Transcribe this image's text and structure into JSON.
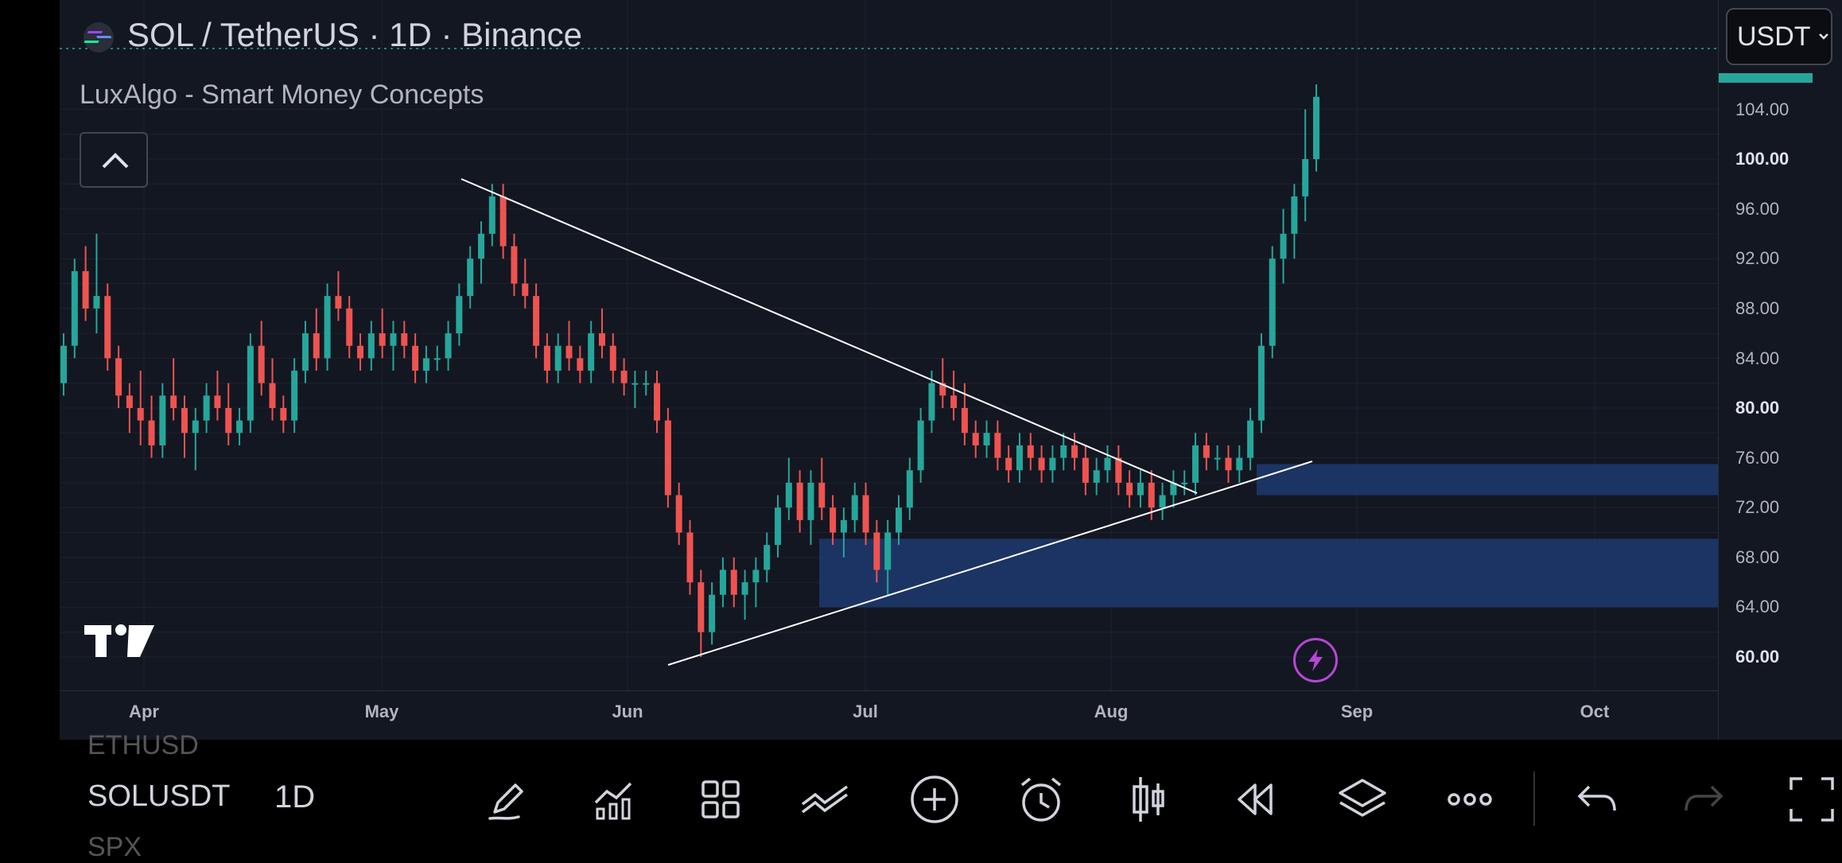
{
  "header": {
    "symbol_title": "SOL / TetherUS · 1D · Binance",
    "indicator_label": "LuxAlgo - Smart Money Concepts",
    "currency_selector": "USDT",
    "currency_chevron_icon": "chevron-down-icon"
  },
  "price_axis": {
    "ticks": [
      "104.00",
      "100.00",
      "96.00",
      "92.00",
      "88.00",
      "84.00",
      "80.00",
      "76.00",
      "72.00",
      "68.00",
      "64.00",
      "60.00"
    ],
    "bold_ticks": [
      "100.00",
      "80.00",
      "60.00"
    ]
  },
  "time_axis": {
    "labels": [
      "Apr",
      "May",
      "Jun",
      "Jul",
      "Aug",
      "Sep",
      "Oct"
    ]
  },
  "colors": {
    "background": "#131722",
    "up_candle": "#26a69a",
    "down_candle": "#ef5350",
    "order_block": "#1e3a6e",
    "trendline": "#ffffff",
    "accent_purple": "#b846d6"
  },
  "chart_data": {
    "type": "candlestick",
    "title": "SOL / TetherUS · 1D · Binance",
    "ylim": [
      58,
      108
    ],
    "x_labels": [
      "Apr",
      "May",
      "Jun",
      "Jul",
      "Aug",
      "Sep",
      "Oct"
    ],
    "candles": [
      [
        82,
        86,
        81,
        85
      ],
      [
        85,
        92,
        84,
        91
      ],
      [
        91,
        93,
        87,
        88
      ],
      [
        88,
        94,
        86,
        89
      ],
      [
        89,
        90,
        83,
        84
      ],
      [
        84,
        85,
        80,
        81
      ],
      [
        81,
        82,
        78,
        80
      ],
      [
        80,
        83,
        77,
        79
      ],
      [
        79,
        81,
        76,
        77
      ],
      [
        77,
        82,
        76,
        81
      ],
      [
        81,
        84,
        79,
        80
      ],
      [
        80,
        81,
        76,
        78
      ],
      [
        78,
        80,
        75,
        79
      ],
      [
        79,
        82,
        78,
        81
      ],
      [
        81,
        83,
        79,
        80
      ],
      [
        80,
        82,
        77,
        78
      ],
      [
        78,
        80,
        77,
        79
      ],
      [
        79,
        86,
        78,
        85
      ],
      [
        85,
        87,
        81,
        82
      ],
      [
        82,
        84,
        79,
        80
      ],
      [
        80,
        81,
        78,
        79
      ],
      [
        79,
        84,
        78,
        83
      ],
      [
        83,
        87,
        82,
        86
      ],
      [
        86,
        88,
        83,
        84
      ],
      [
        84,
        90,
        83,
        89
      ],
      [
        89,
        91,
        87,
        88
      ],
      [
        88,
        89,
        84,
        85
      ],
      [
        85,
        86,
        83,
        84
      ],
      [
        84,
        87,
        83,
        86
      ],
      [
        86,
        88,
        84,
        85
      ],
      [
        85,
        87,
        83,
        86
      ],
      [
        86,
        87,
        84,
        85
      ],
      [
        85,
        86,
        82,
        83
      ],
      [
        83,
        85,
        82,
        84
      ],
      [
        84,
        85,
        83,
        84
      ],
      [
        84,
        87,
        83,
        86
      ],
      [
        86,
        90,
        85,
        89
      ],
      [
        89,
        93,
        88,
        92
      ],
      [
        92,
        95,
        90,
        94
      ],
      [
        94,
        98,
        93,
        97
      ],
      [
        97,
        98,
        92,
        93
      ],
      [
        93,
        94,
        89,
        90
      ],
      [
        90,
        92,
        88,
        89
      ],
      [
        89,
        90,
        84,
        85
      ],
      [
        85,
        86,
        82,
        83
      ],
      [
        83,
        86,
        82,
        85
      ],
      [
        85,
        87,
        83,
        84
      ],
      [
        84,
        85,
        82,
        83
      ],
      [
        83,
        87,
        82,
        86
      ],
      [
        86,
        88,
        84,
        85
      ],
      [
        85,
        86,
        82,
        83
      ],
      [
        83,
        84,
        81,
        82
      ],
      [
        82,
        83,
        80,
        82
      ],
      [
        82,
        83,
        81,
        82
      ],
      [
        82,
        83,
        78,
        79
      ],
      [
        79,
        80,
        72,
        73
      ],
      [
        73,
        74,
        69,
        70
      ],
      [
        70,
        71,
        65,
        66
      ],
      [
        66,
        67,
        60,
        62
      ],
      [
        62,
        66,
        61,
        65
      ],
      [
        65,
        68,
        64,
        67
      ],
      [
        67,
        68,
        64,
        65
      ],
      [
        65,
        67,
        63,
        66
      ],
      [
        66,
        68,
        64,
        67
      ],
      [
        67,
        70,
        66,
        69
      ],
      [
        69,
        73,
        68,
        72
      ],
      [
        72,
        76,
        71,
        74
      ],
      [
        74,
        75,
        70,
        71
      ],
      [
        71,
        75,
        69,
        74
      ],
      [
        74,
        76,
        71,
        72
      ],
      [
        72,
        73,
        69,
        70
      ],
      [
        70,
        72,
        68,
        71
      ],
      [
        71,
        74,
        70,
        73
      ],
      [
        73,
        74,
        69,
        70
      ],
      [
        70,
        71,
        66,
        67
      ],
      [
        67,
        71,
        65,
        70
      ],
      [
        70,
        73,
        69,
        72
      ],
      [
        72,
        76,
        71,
        75
      ],
      [
        75,
        80,
        74,
        79
      ],
      [
        79,
        83,
        78,
        82
      ],
      [
        82,
        84,
        80,
        81
      ],
      [
        81,
        83,
        79,
        80
      ],
      [
        80,
        82,
        77,
        78
      ],
      [
        78,
        79,
        76,
        77
      ],
      [
        77,
        79,
        76,
        78
      ],
      [
        78,
        79,
        75,
        76
      ],
      [
        76,
        77,
        74,
        75
      ],
      [
        75,
        78,
        74,
        77
      ],
      [
        77,
        78,
        75,
        76
      ],
      [
        76,
        77,
        74,
        75
      ],
      [
        75,
        77,
        74,
        76
      ],
      [
        76,
        78,
        75,
        77
      ],
      [
        77,
        78,
        75,
        76
      ],
      [
        76,
        77,
        73,
        74
      ],
      [
        74,
        76,
        73,
        75
      ],
      [
        75,
        77,
        74,
        76
      ],
      [
        76,
        77,
        73,
        74
      ],
      [
        74,
        75,
        72,
        73
      ],
      [
        73,
        75,
        72,
        74
      ],
      [
        74,
        75,
        71,
        72
      ],
      [
        72,
        74,
        71,
        73
      ],
      [
        73,
        75,
        72,
        74
      ],
      [
        74,
        75,
        73,
        74
      ],
      [
        74,
        78,
        73,
        77
      ],
      [
        77,
        78,
        75,
        76
      ],
      [
        76,
        77,
        75,
        76
      ],
      [
        76,
        77,
        74,
        75
      ],
      [
        75,
        77,
        74,
        76
      ],
      [
        76,
        80,
        75,
        79
      ],
      [
        79,
        86,
        78,
        85
      ],
      [
        85,
        93,
        84,
        92
      ],
      [
        92,
        96,
        90,
        94
      ],
      [
        94,
        98,
        92,
        97
      ],
      [
        97,
        104,
        95,
        100
      ],
      [
        100,
        106,
        99,
        105
      ]
    ]
  }
}
